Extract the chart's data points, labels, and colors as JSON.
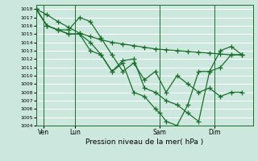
{
  "title": "",
  "xlabel": "Pression niveau de la mer( hPa )",
  "background_color": "#cce8de",
  "grid_color": "#ffffff",
  "line_color": "#1a6e2a",
  "ylim": [
    1004,
    1018.5
  ],
  "yticks": [
    1004,
    1005,
    1006,
    1007,
    1008,
    1009,
    1010,
    1011,
    1012,
    1013,
    1014,
    1015,
    1016,
    1017,
    1018
  ],
  "xlim": [
    0,
    14
  ],
  "xtick_labels": [
    "Ven",
    "Lun",
    "Sam",
    "Dim"
  ],
  "xtick_positions": [
    0.5,
    2.5,
    8.0,
    11.5
  ],
  "vlines": [
    0.5,
    2.5,
    8.0,
    11.5
  ],
  "series": [
    {
      "x": [
        0.0,
        0.7,
        1.4,
        2.1,
        2.8,
        3.5,
        4.2,
        4.9,
        5.6,
        6.3,
        7.0,
        7.7,
        8.4,
        9.1,
        9.8,
        10.5,
        11.2,
        11.9,
        12.6,
        13.3
      ],
      "y": [
        1018.0,
        1017.3,
        1016.5,
        1015.8,
        1015.1,
        1014.7,
        1014.3,
        1014.0,
        1013.8,
        1013.6,
        1013.4,
        1013.2,
        1013.1,
        1013.0,
        1012.9,
        1012.8,
        1012.7,
        1012.6,
        1012.5,
        1012.5
      ]
    },
    {
      "x": [
        0.0,
        0.7,
        1.4,
        2.1,
        2.8,
        3.5,
        4.2,
        4.9,
        5.6,
        6.3,
        7.0,
        7.7,
        8.4,
        9.1,
        9.8,
        10.5,
        11.2,
        11.9,
        12.6,
        13.3
      ],
      "y": [
        1018.0,
        1016.0,
        1015.5,
        1015.5,
        1017.0,
        1016.5,
        1014.5,
        1012.5,
        1010.5,
        1011.5,
        1009.5,
        1010.5,
        1008.0,
        1010.0,
        1009.0,
        1008.0,
        1008.5,
        1007.5,
        1008.0,
        1008.0
      ]
    },
    {
      "x": [
        0.0,
        0.7,
        1.4,
        2.1,
        2.8,
        3.5,
        4.2,
        4.9,
        5.6,
        6.3,
        7.0,
        7.7,
        8.4,
        9.1,
        9.8,
        10.5,
        11.2,
        11.9,
        12.6,
        13.3
      ],
      "y": [
        1018.0,
        1016.0,
        1015.5,
        1015.0,
        1015.0,
        1014.0,
        1012.5,
        1010.5,
        1011.8,
        1012.0,
        1008.5,
        1008.0,
        1007.0,
        1006.5,
        1005.5,
        1004.5,
        1010.5,
        1011.0,
        1012.5,
        1012.5
      ]
    },
    {
      "x": [
        0.0,
        0.7,
        1.4,
        2.1,
        2.8,
        3.5,
        4.2,
        4.9,
        5.6,
        6.3,
        7.0,
        7.7,
        8.0,
        8.4,
        9.1,
        9.8,
        10.5,
        11.2,
        11.9,
        12.6,
        13.3
      ],
      "y": [
        1018.0,
        1016.0,
        1015.5,
        1015.0,
        1015.0,
        1013.0,
        1012.5,
        1010.5,
        1011.5,
        1008.0,
        1007.5,
        1006.0,
        1005.5,
        1004.5,
        1004.0,
        1006.5,
        1010.5,
        1010.5,
        1013.0,
        1013.5,
        1012.5
      ]
    }
  ]
}
